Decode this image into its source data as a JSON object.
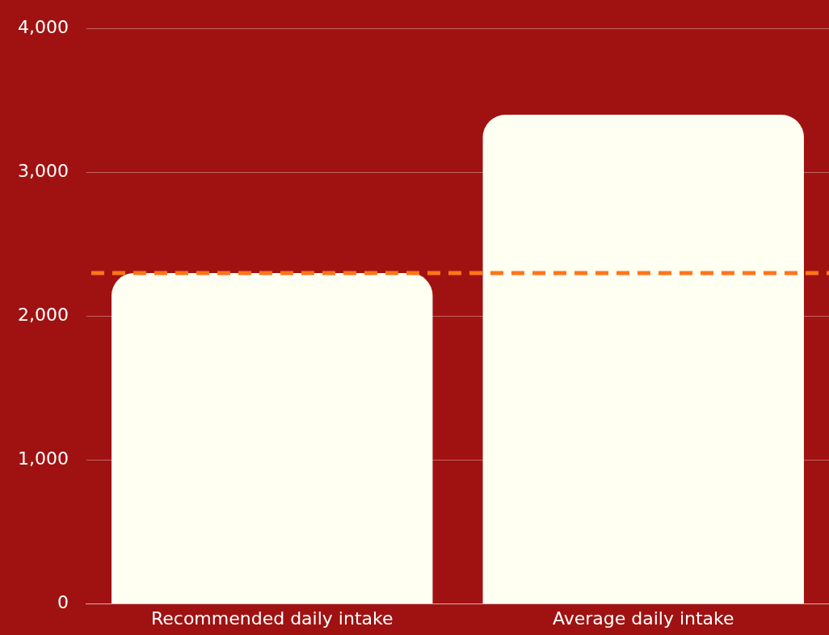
{
  "chart_data": {
    "type": "bar",
    "categories": [
      "Recommended daily intake",
      "Average daily intake"
    ],
    "values": [
      2300,
      3400
    ],
    "color": "#fffff2",
    "ylim": [
      0,
      4000
    ],
    "yticks": [
      0,
      {
        "value": 1000,
        "label": "1,000"
      },
      {
        "value": 2000,
        "label": "2,000"
      },
      {
        "value": 3000,
        "label": "3,000"
      },
      {
        "value": 4000,
        "label": "4,000"
      }
    ],
    "grid": "y",
    "ref_lines": [
      {
        "axis": "y",
        "value": 2300,
        "color": "#ff7518",
        "line_style": "dashed"
      }
    ]
  }
}
